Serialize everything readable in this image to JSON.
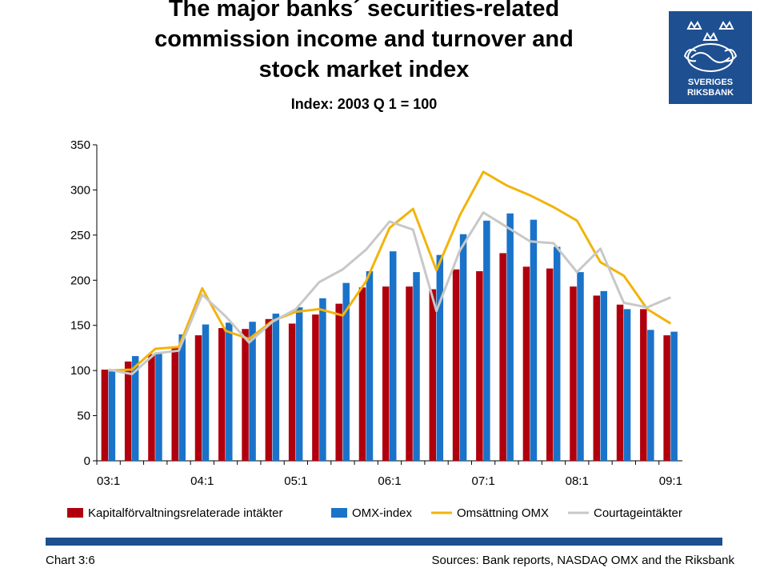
{
  "header": {
    "title_lines": [
      "The major banks´ securities-related",
      "commission income and turnover and",
      "stock market index"
    ],
    "subtitle": "Index: 2003 Q 1 = 100"
  },
  "logo": {
    "text_lines": [
      "SVERIGES",
      "RIKSBANK"
    ],
    "color": "#1d4f91"
  },
  "footer": {
    "chart_number": "Chart 3:6",
    "sources": "Sources: Bank reports,  NASDAQ OMX and the Riksbank",
    "rule_color": "#1d4f91"
  },
  "chart_data": {
    "type": "bar",
    "categories": [
      "03:1",
      "03:2",
      "03:3",
      "03:4",
      "04:1",
      "04:2",
      "04:3",
      "04:4",
      "05:1",
      "05:2",
      "05:3",
      "05:4",
      "06:1",
      "06:2",
      "06:3",
      "06:4",
      "07:1",
      "07:2",
      "07:3",
      "07:4",
      "08:1",
      "08:2",
      "08:3",
      "08:4",
      "09:1"
    ],
    "x_tick_labels": [
      "03:1",
      "04:1",
      "05:1",
      "06:1",
      "07:1",
      "08:1",
      "09:1"
    ],
    "ylim": [
      0,
      350
    ],
    "y_ticks": [
      0,
      50,
      100,
      150,
      200,
      250,
      300,
      350
    ],
    "grid": false,
    "legend_position": "bottom",
    "series": [
      {
        "name": "Kapitalförvaltningsrelaterade intäkter",
        "kind": "bar",
        "color": "#b0000d",
        "values": [
          101,
          110,
          118,
          126,
          139,
          147,
          146,
          157,
          152,
          162,
          174,
          192,
          193,
          193,
          190,
          212,
          210,
          230,
          215,
          213,
          193,
          183,
          173,
          168,
          139
        ]
      },
      {
        "name": "OMX-index",
        "kind": "bar",
        "color": "#1a73c9",
        "values": [
          100,
          116,
          120,
          140,
          151,
          153,
          154,
          163,
          170,
          180,
          197,
          210,
          232,
          209,
          228,
          251,
          266,
          274,
          267,
          237,
          209,
          188,
          168,
          145,
          143
        ]
      },
      {
        "name": "Omsättning OMX",
        "kind": "line",
        "color": "#f2b40b",
        "values": [
          100,
          101,
          124,
          126,
          191,
          144,
          135,
          155,
          165,
          168,
          161,
          199,
          258,
          279,
          211,
          272,
          320,
          305,
          294,
          281,
          266,
          220,
          205,
          168,
          152
        ]
      },
      {
        "name": "Courtageintäkter",
        "kind": "line",
        "color": "#c8c8c8",
        "values": [
          101,
          96,
          119,
          122,
          184,
          160,
          131,
          154,
          168,
          198,
          212,
          234,
          265,
          256,
          166,
          233,
          275,
          259,
          243,
          241,
          209,
          235,
          175,
          170,
          181
        ]
      }
    ]
  }
}
